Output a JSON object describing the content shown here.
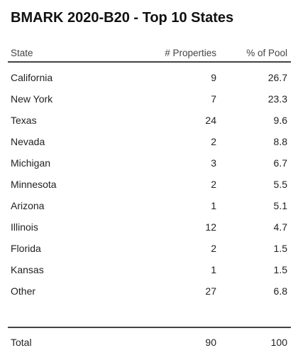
{
  "title": "BMARK 2020-B20 - Top 10 States",
  "headers": {
    "state": "State",
    "properties": "# Properties",
    "pct": "% of Pool"
  },
  "rows": [
    {
      "state": "California",
      "properties": "9",
      "pct": "26.7"
    },
    {
      "state": "New York",
      "properties": "7",
      "pct": "23.3"
    },
    {
      "state": "Texas",
      "properties": "24",
      "pct": "9.6"
    },
    {
      "state": "Nevada",
      "properties": "2",
      "pct": "8.8"
    },
    {
      "state": "Michigan",
      "properties": "3",
      "pct": "6.7"
    },
    {
      "state": "Minnesota",
      "properties": "2",
      "pct": "5.5"
    },
    {
      "state": "Arizona",
      "properties": "1",
      "pct": "5.1"
    },
    {
      "state": "Illinois",
      "properties": "12",
      "pct": "4.7"
    },
    {
      "state": "Florida",
      "properties": "2",
      "pct": "1.5"
    },
    {
      "state": "Kansas",
      "properties": "1",
      "pct": "1.5"
    },
    {
      "state": "Other",
      "properties": "27",
      "pct": "6.8"
    }
  ],
  "total": {
    "label": "Total",
    "properties": "90",
    "pct": "100"
  }
}
